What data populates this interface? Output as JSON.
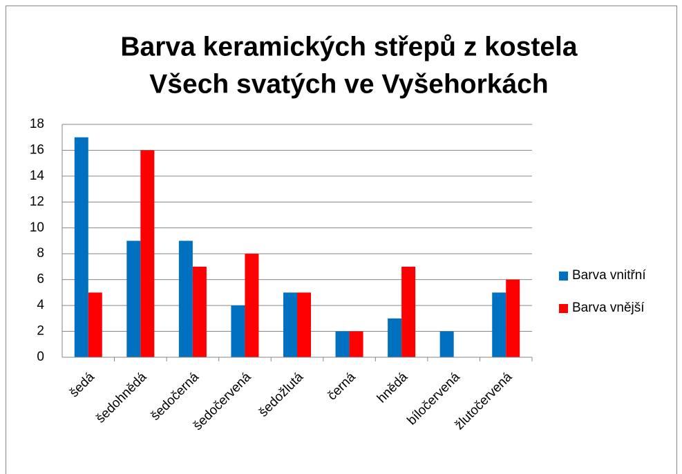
{
  "chart_data": {
    "type": "bar",
    "title": [
      "Barva keramických střepů z kostela",
      "Všech svatých ve Vyšehorkách"
    ],
    "categories": [
      "šedá",
      "šedohnědá",
      "šedočerná",
      "šedočervená",
      "šedožlutá",
      "černá",
      "hnědá",
      "bíločervená",
      "žlutočervená"
    ],
    "series": [
      {
        "name": "Barva vnitřní",
        "color": "#0070c0",
        "values": [
          17,
          9,
          9,
          4,
          5,
          2,
          3,
          2,
          5
        ]
      },
      {
        "name": "Barva vnější",
        "color": "#ff0000",
        "values": [
          5,
          16,
          7,
          8,
          5,
          2,
          7,
          0,
          6
        ]
      }
    ],
    "ylim": [
      0,
      18
    ],
    "yticks": [
      0,
      2,
      4,
      6,
      8,
      10,
      12,
      14,
      16,
      18
    ],
    "grid": true,
    "legend": "right"
  }
}
